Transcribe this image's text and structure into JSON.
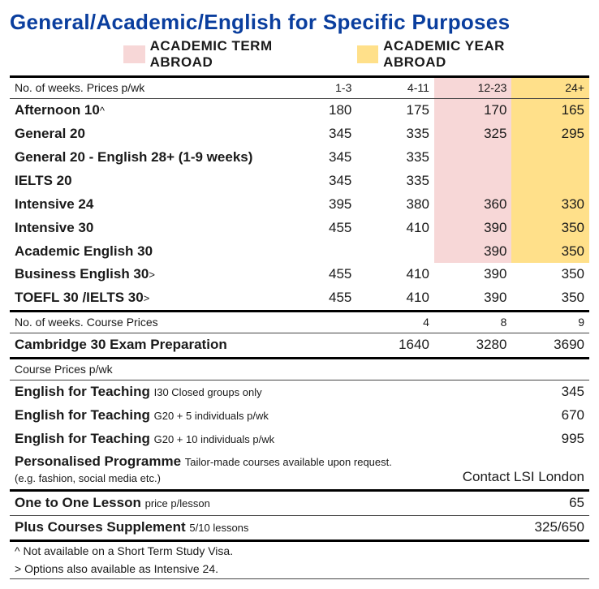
{
  "title": "General/Academic/English for Specific Purposes",
  "legend": {
    "term": {
      "color": "#f7d7d7",
      "label": "ACADEMIC TERM ABROAD"
    },
    "year": {
      "color": "#ffe08a",
      "label": "ACADEMIC YEAR ABROAD"
    }
  },
  "section1": {
    "header_label": "No. of weeks. Prices p/wk",
    "cols": [
      "1-3",
      "4-11",
      "12-23",
      "24+"
    ],
    "rows": [
      {
        "label": "Afternoon 10",
        "suffix": "^",
        "v": [
          "180",
          "175",
          "170",
          "165"
        ],
        "hl": [
          false,
          false,
          true,
          true
        ]
      },
      {
        "label": "General 20",
        "v": [
          "345",
          "335",
          "325",
          "295"
        ],
        "hl": [
          false,
          false,
          true,
          true
        ]
      },
      {
        "label": "General 20 - English 28+ (1-9 weeks)",
        "v": [
          "345",
          "335",
          "",
          ""
        ],
        "hl": [
          false,
          false,
          true,
          true
        ]
      },
      {
        "label": "IELTS 20",
        "v": [
          "345",
          "335",
          "",
          ""
        ],
        "hl": [
          false,
          false,
          true,
          true
        ]
      },
      {
        "label": "Intensive 24",
        "v": [
          "395",
          "380",
          "360",
          "330"
        ],
        "hl": [
          false,
          false,
          true,
          true
        ]
      },
      {
        "label": "Intensive 30",
        "v": [
          "455",
          "410",
          "390",
          "350"
        ],
        "hl": [
          false,
          false,
          true,
          true
        ]
      },
      {
        "label": "Academic English 30",
        "v": [
          "",
          "",
          "390",
          "350"
        ],
        "hl": [
          false,
          false,
          true,
          true
        ]
      },
      {
        "label": "Business English 30",
        "suffix": ">",
        "v": [
          "455",
          "410",
          "390",
          "350"
        ],
        "hl": [
          false,
          false,
          false,
          false
        ]
      },
      {
        "label": "TOEFL 30 /IELTS 30",
        "suffix": ">",
        "v": [
          "455",
          "410",
          "390",
          "350"
        ],
        "hl": [
          false,
          false,
          false,
          false
        ]
      }
    ]
  },
  "section2": {
    "header_label": "No. of weeks. Course Prices",
    "cols": [
      "",
      "4",
      "8",
      "9"
    ],
    "rows": [
      {
        "label": "Cambridge 30 Exam Preparation",
        "v": [
          "",
          "1640",
          "3280",
          "3690"
        ]
      }
    ]
  },
  "section3": {
    "header_label": "Course Prices p/wk",
    "rows": [
      {
        "label": "English for Teaching",
        "sub": "I30 Closed groups only",
        "val": "345"
      },
      {
        "label": "English for Teaching",
        "sub": "G20 + 5 individuals p/wk",
        "val": "670"
      },
      {
        "label": "English for Teaching",
        "sub": "G20 + 10 individuals p/wk",
        "val": "995"
      },
      {
        "label": "Personalised Programme",
        "sub": "Tailor-made courses available upon request.",
        "sub2": "(e.g. fashion, social media etc.)",
        "val": "Contact LSI London"
      }
    ]
  },
  "section4": {
    "rows": [
      {
        "label": "One to One Lesson",
        "sub": "price p/lesson",
        "val": "65"
      },
      {
        "label": "Plus Courses Supplement",
        "sub": "5/10 lessons",
        "val": "325/650"
      }
    ]
  },
  "footnotes": [
    "^ Not available on a Short Term Study Visa.",
    "> Options also available as Intensive 24."
  ],
  "colors": {
    "title": "#0a3e9e",
    "text": "#1a1a1a",
    "term_bg": "#f7d7d7",
    "year_bg": "#ffe08a",
    "rule_thick": "#000000",
    "rule_thin": "#444444"
  }
}
